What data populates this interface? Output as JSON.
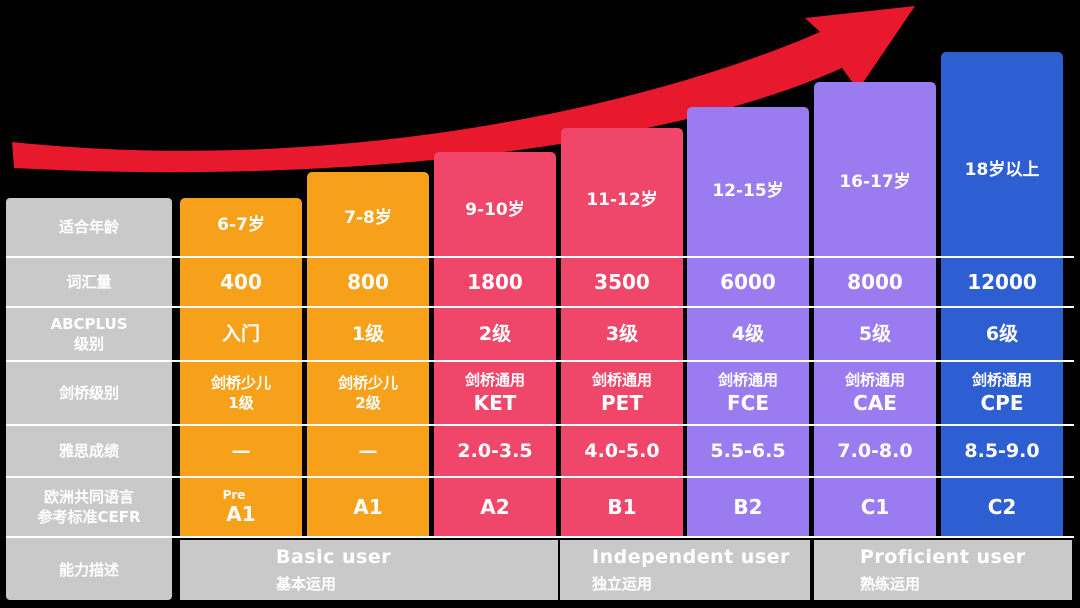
{
  "colors": {
    "arrow": "#e8192c",
    "label_bg": "#c9c9c9",
    "orange": "#f7a11a",
    "pink": "#ef466a",
    "purple": "#9b7cf0",
    "blue": "#2e5fd2"
  },
  "row_labels": {
    "age": "适合年龄",
    "vocab": "词汇量",
    "abcplus_line1": "ABCPLUS",
    "abcplus_line2": "级别",
    "cambridge": "剑桥级别",
    "ielts": "雅思成绩",
    "cefr_line1": "欧洲共同语言",
    "cefr_line2": "参考标准CEFR",
    "ability": "能力描述"
  },
  "levels": [
    {
      "age": "6-7岁",
      "vocab": "400",
      "abcplus": "入门",
      "cam1": "剑桥少儿",
      "cam2": "1级",
      "ielts": "—",
      "cefr_pre": "Pre",
      "cefr": "A1",
      "color": "orange"
    },
    {
      "age": "7-8岁",
      "vocab": "800",
      "abcplus": "1级",
      "cam1": "剑桥少儿",
      "cam2": "2级",
      "ielts": "—",
      "cefr_pre": "",
      "cefr": "A1",
      "color": "orange"
    },
    {
      "age": "9-10岁",
      "vocab": "1800",
      "abcplus": "2级",
      "cam1": "剑桥通用",
      "cam2": "KET",
      "ielts": "2.0-3.5",
      "cefr_pre": "",
      "cefr": "A2",
      "color": "pink"
    },
    {
      "age": "11-12岁",
      "vocab": "3500",
      "abcplus": "3级",
      "cam1": "剑桥通用",
      "cam2": "PET",
      "ielts": "4.0-5.0",
      "cefr_pre": "",
      "cefr": "B1",
      "color": "pink"
    },
    {
      "age": "12-15岁",
      "vocab": "6000",
      "abcplus": "4级",
      "cam1": "剑桥通用",
      "cam2": "FCE",
      "ielts": "5.5-6.5",
      "cefr_pre": "",
      "cefr": "B2",
      "color": "purple"
    },
    {
      "age": "16-17岁",
      "vocab": "8000",
      "abcplus": "5级",
      "cam1": "剑桥通用",
      "cam2": "CAE",
      "ielts": "7.0-8.0",
      "cefr_pre": "",
      "cefr": "C1",
      "color": "purple"
    },
    {
      "age": "18岁以上",
      "vocab": "12000",
      "abcplus": "6级",
      "cam1": "剑桥通用",
      "cam2": "CPE",
      "ielts": "8.5-9.0",
      "cefr_pre": "",
      "cefr": "C2",
      "color": "blue"
    }
  ],
  "abilities": [
    {
      "en": "Basic user",
      "zh": "基本运用"
    },
    {
      "en": "Independent user",
      "zh": "独立运用"
    },
    {
      "en": "Proficient user",
      "zh": "熟练运用"
    }
  ]
}
